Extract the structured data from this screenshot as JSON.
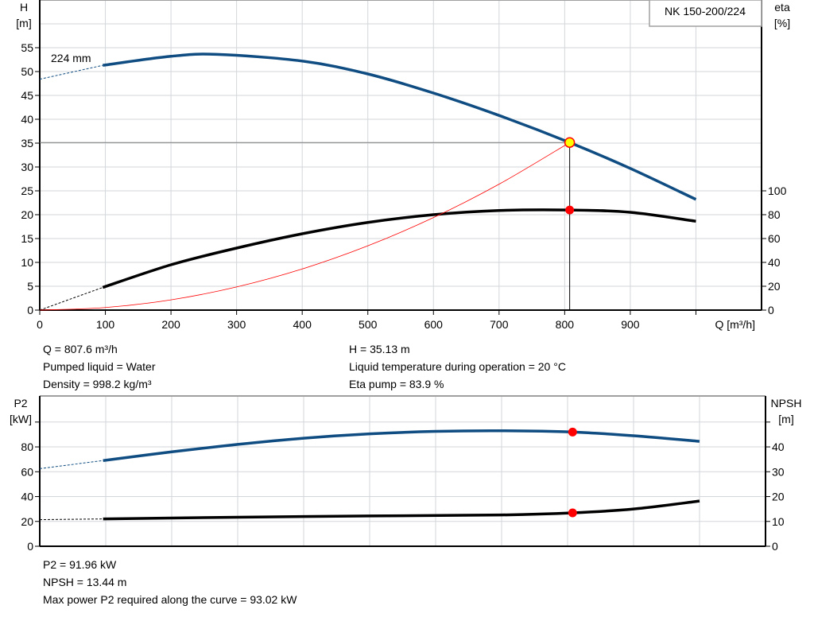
{
  "chart_data": [
    {
      "type": "line",
      "title": "NK 150-200/224",
      "xlabel": "Q [m³/h]",
      "ylabel": "H\n[m]",
      "ylabel_right": "eta\n[%]",
      "xlim": [
        0,
        1100
      ],
      "ylim": [
        0,
        65
      ],
      "ylim_right": [
        0,
        260
      ],
      "x_ticks": [
        0,
        100,
        200,
        300,
        400,
        500,
        600,
        700,
        800,
        900
      ],
      "y_ticks": [
        0,
        5,
        10,
        15,
        20,
        25,
        30,
        35,
        40,
        45,
        50,
        55
      ],
      "y_ticks_right": [
        0,
        20,
        40,
        60,
        80,
        100
      ],
      "grid": true,
      "annotation": "224 mm",
      "colors": {
        "head": "#0f4c81",
        "eta": "#000000",
        "system": "#ff0000",
        "marker_fill": "#ffff00",
        "marker_edge": "#ff0000"
      },
      "series": [
        {
          "name": "224 mm",
          "axis": "left",
          "color": "#0f4c81",
          "x": [
            96,
            200,
            270,
            400,
            500,
            600,
            700,
            807.6,
            900,
            1000
          ],
          "y": [
            51.3,
            53.2,
            53.6,
            52.2,
            49.5,
            45.5,
            40.8,
            35.13,
            29.7,
            23.2
          ],
          "extrapolated": {
            "x": [
              0,
              96
            ],
            "y": [
              48.4,
              51.3
            ]
          }
        },
        {
          "axis": "right",
          "color": "#000000",
          "x": [
            96,
            200,
            300,
            400,
            500,
            600,
            700,
            807.6,
            900,
            1000
          ],
          "y": [
            19,
            38,
            52,
            64,
            73.5,
            80,
            83.5,
            83.9,
            82,
            74.5
          ],
          "extrapolated": {
            "x": [
              0,
              96
            ],
            "y": [
              0,
              19
            ]
          }
        },
        {
          "axis": "left",
          "color": "#ff0000",
          "style": "system curve",
          "x": [
            0,
            100,
            200,
            300,
            400,
            500,
            600,
            700,
            807.6
          ],
          "y": [
            0,
            0.54,
            2.15,
            4.85,
            8.62,
            13.47,
            19.39,
            26.39,
            35.13
          ]
        }
      ],
      "operating_point": {
        "Q": 807.6,
        "H": 35.13,
        "eta": 83.9
      }
    },
    {
      "type": "line",
      "xlabel": "",
      "ylabel": "P2\n[kW]",
      "ylabel_right": "NPSH\n[m]",
      "xlim": [
        0,
        1100
      ],
      "ylim": [
        0,
        121
      ],
      "ylim_right": [
        0,
        60.5
      ],
      "x_ticks": [
        0,
        100,
        200,
        300,
        400,
        500,
        600,
        700,
        800,
        900,
        1000
      ],
      "y_ticks": [
        0,
        20,
        40,
        60,
        80,
        100
      ],
      "y_tick_labels": [
        "0",
        "20",
        "40",
        "60",
        "80",
        ""
      ],
      "y_ticks_right": [
        0,
        10,
        20,
        30,
        40,
        50
      ],
      "y_tick_labels_right": [
        "0",
        "10",
        "20",
        "30",
        "40",
        ""
      ],
      "grid": true,
      "series": [
        {
          "axis": "left",
          "color": "#0f4c81",
          "x": [
            96,
            200,
            300,
            400,
            500,
            600,
            700,
            807.6,
            900,
            1000
          ],
          "y": [
            69,
            76,
            82,
            87,
            90.5,
            92.5,
            93,
            91.96,
            89,
            84.5
          ],
          "extrapolated": {
            "x": [
              0,
              96
            ],
            "y": [
              62.5,
              69
            ]
          }
        },
        {
          "axis": "right",
          "color": "#000000",
          "x": [
            96,
            300,
            500,
            700,
            807.6,
            900,
            1000
          ],
          "y": [
            11,
            11.7,
            12.2,
            12.6,
            13.44,
            15,
            18.2
          ],
          "extrapolated": {
            "x": [
              0,
              96
            ],
            "y": [
              10.7,
              11
            ]
          }
        }
      ],
      "operating_point": {
        "Q": 807.6,
        "P2": 91.96,
        "NPSH": 13.44
      }
    }
  ],
  "info_top": {
    "q": "Q = 807.6 m³/h",
    "liquid": "Pumped liquid = Water",
    "density": "Density = 998.2 kg/m³",
    "h": "H = 35.13 m",
    "temp": "Liquid temperature during operation = 20 °C",
    "eta": "Eta pump = 83.9 %"
  },
  "info_bottom": {
    "p2": "P2 = 91.96 kW",
    "npsh": "NPSH = 13.44 m",
    "max_power": "Max power P2 required along the curve = 93.02 kW"
  }
}
